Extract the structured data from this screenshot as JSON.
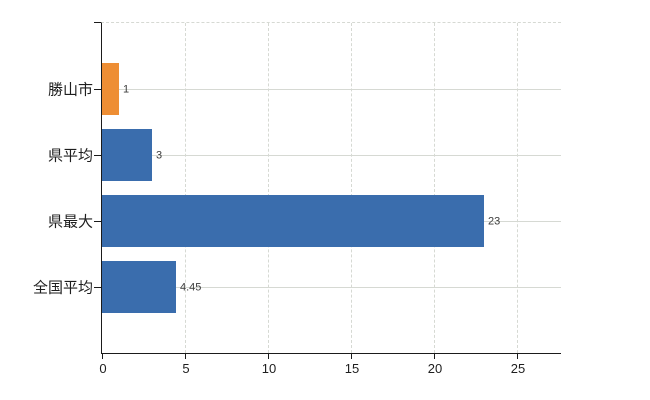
{
  "chart_data": {
    "type": "bar",
    "orientation": "horizontal",
    "title": "",
    "xlabel": "",
    "ylabel": "",
    "categories": [
      "勝山市",
      "県平均",
      "県最大",
      "全国平均"
    ],
    "values": [
      1,
      3,
      23,
      4.45
    ],
    "value_labels": [
      "1",
      "3",
      "23",
      "4.45"
    ],
    "bar_colors": [
      "#EE8E34",
      "#3A6DAD",
      "#3A6DAD",
      "#3A6DAD"
    ],
    "xticks": [
      0,
      5,
      10,
      15,
      20,
      25
    ],
    "xtick_labels": [
      "0",
      "5",
      "10",
      "15",
      "20",
      "25"
    ],
    "xlim": [
      0,
      27.65
    ],
    "grid": true,
    "legend": false,
    "colors": {
      "accent_orange": "#EE8E34",
      "accent_blue": "#3A6DAD",
      "grid": "#d6d9d3",
      "axis": "#1b1b1b",
      "tick_text": "#1e1e1e",
      "value_text": "#3c3c3c",
      "background": "#ffffff"
    }
  }
}
